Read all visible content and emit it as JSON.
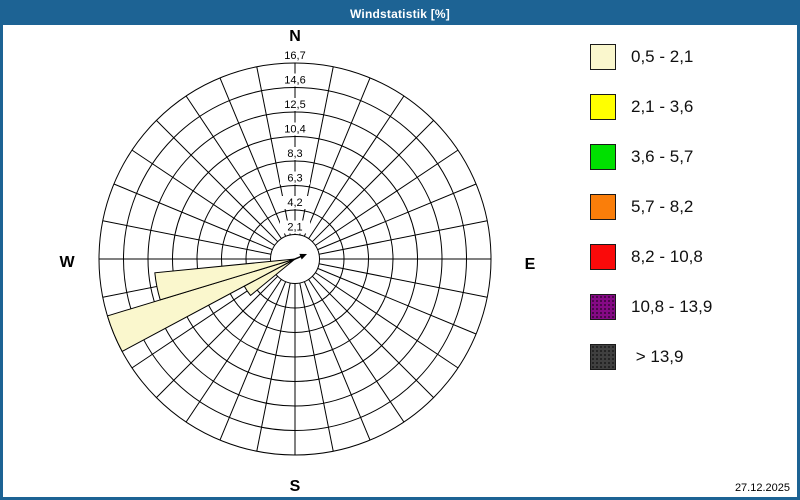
{
  "window": {
    "title": "Windstatistik [%]",
    "date": "27.12.2025",
    "titlebar_color": "#1D6394",
    "border_color": "#1D6394",
    "background_color": "#FFFFFF"
  },
  "chart_data": {
    "type": "wind-rose polar bar chart",
    "title": "Windstatistik [%]",
    "units": "%",
    "sectors": 32,
    "sector_width_deg": 11.25,
    "compass_labels": {
      "n": "N",
      "e": "E",
      "s": "S",
      "w": "W"
    },
    "radial_axis": {
      "max": 16.7,
      "ring_values": [
        2.1,
        4.2,
        6.3,
        8.3,
        10.4,
        12.5,
        14.6,
        16.7
      ],
      "tick_labels": [
        "2,1",
        "4,2",
        "6,3",
        "8,3",
        "10,4",
        "12,5",
        "14,6",
        "16,7"
      ]
    },
    "grid_color": "#000000",
    "grid": "on",
    "series": [
      {
        "speed_class": "0,5 - 2,1",
        "color": "#FAF7CD",
        "points": [
          {
            "direction_deg": 236.25,
            "value_pct": 4.9
          },
          {
            "direction_deg": 247.5,
            "value_pct": 16.7
          },
          {
            "direction_deg": 258.75,
            "value_pct": 12.0
          }
        ]
      }
    ],
    "center_arrow": {
      "direction_deg": 67.5,
      "color": "#000000"
    }
  },
  "legend": {
    "items": [
      {
        "label": "0,5 - 2,1",
        "color": "#FAF7CD",
        "dotted": false
      },
      {
        "label": "2,1 - 3,6",
        "color": "#FFFF00",
        "dotted": false
      },
      {
        "label": "3,6 - 5,7",
        "color": "#00E000",
        "dotted": false
      },
      {
        "label": "5,7 - 8,2",
        "color": "#FA7E0A",
        "dotted": false
      },
      {
        "label": "8,2 - 10,8",
        "color": "#FA0A0A",
        "dotted": false
      },
      {
        "label": "10,8 - 13,9",
        "color": "#850A85",
        "dotted": true
      },
      {
        "label": " > 13,9",
        "color": "#404040",
        "dotted": true
      }
    ]
  }
}
